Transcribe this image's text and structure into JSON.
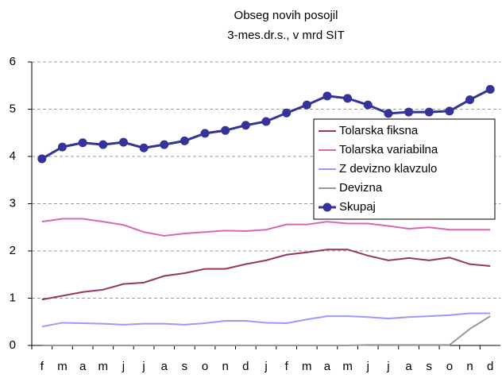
{
  "chart_data": {
    "type": "line",
    "title": "Obseg novih posojil",
    "subtitle": "3-mes.dr.s., v mrd SIT",
    "categories": [
      "f",
      "m",
      "a",
      "m",
      "j",
      "j",
      "a",
      "s",
      "o",
      "n",
      "d",
      "j",
      "f",
      "m",
      "a",
      "m",
      "j",
      "j",
      "a",
      "s",
      "o",
      "n",
      "d"
    ],
    "series": [
      {
        "name": "Tolarska fiksna",
        "color": "#993366",
        "values": [
          0.97,
          1.05,
          1.13,
          1.18,
          1.3,
          1.33,
          1.47,
          1.53,
          1.62,
          1.62,
          1.72,
          1.8,
          1.92,
          1.97,
          2.03,
          2.03,
          1.9,
          1.8,
          1.85,
          1.8,
          1.86,
          1.72,
          1.68
        ]
      },
      {
        "name": "Tolarska variabilna",
        "color": "#d966b3",
        "values": [
          2.62,
          2.68,
          2.68,
          2.62,
          2.55,
          2.4,
          2.32,
          2.37,
          2.4,
          2.43,
          2.42,
          2.45,
          2.56,
          2.56,
          2.62,
          2.58,
          2.58,
          2.53,
          2.47,
          2.5,
          2.45,
          2.45,
          2.45
        ]
      },
      {
        "name": "Z devizno klavzulo",
        "color": "#9999ff",
        "values": [
          0.4,
          0.48,
          0.47,
          0.46,
          0.44,
          0.46,
          0.46,
          0.44,
          0.47,
          0.52,
          0.52,
          0.48,
          0.47,
          0.55,
          0.62,
          0.62,
          0.6,
          0.57,
          0.6,
          0.62,
          0.64,
          0.68,
          0.68
        ]
      },
      {
        "name": "Devizna",
        "color": "#999999",
        "values": [
          0,
          0,
          0,
          0,
          0,
          0,
          0,
          0,
          0,
          0,
          0,
          0,
          0,
          0,
          0,
          0,
          0.01,
          0.01,
          0.01,
          0.01,
          0.01,
          0.35,
          0.62
        ]
      },
      {
        "name": "Skupaj",
        "color": "#333399",
        "marker": true,
        "values": [
          3.95,
          4.2,
          4.29,
          4.25,
          4.3,
          4.18,
          4.25,
          4.33,
          4.49,
          4.55,
          4.66,
          4.74,
          4.92,
          5.09,
          5.28,
          5.23,
          5.09,
          4.91,
          4.94,
          4.94,
          4.96,
          5.2,
          5.42
        ]
      }
    ],
    "ylim": [
      0,
      6
    ],
    "yticks": [
      0,
      1,
      2,
      3,
      4,
      5,
      6
    ],
    "grid": true
  }
}
